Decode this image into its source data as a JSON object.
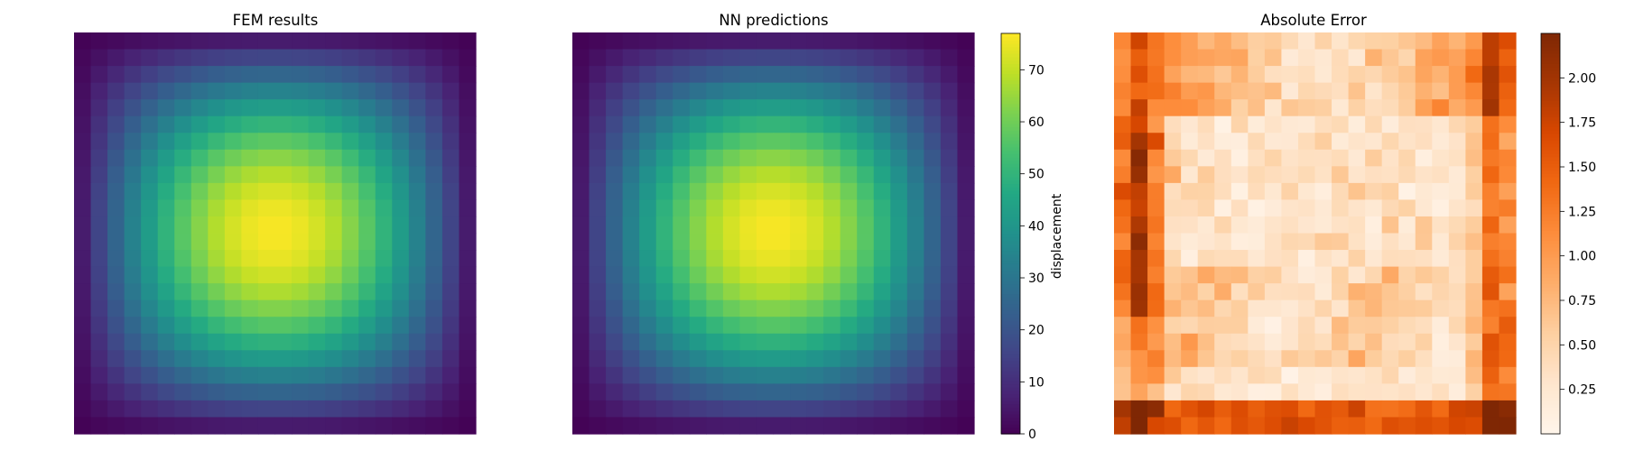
{
  "chart_data": [
    {
      "type": "heatmap",
      "title": "FEM results",
      "grid": [
        24,
        24
      ],
      "colormap": "viridis",
      "value_range": [
        0,
        77
      ],
      "field": "smooth bump peaking near the center, near 0 at the corners",
      "axes": "off"
    },
    {
      "type": "heatmap",
      "title": "NN predictions",
      "grid": [
        24,
        24
      ],
      "colormap": "viridis",
      "value_range": [
        0,
        77
      ],
      "field": "smooth bump peaking near the center, near 0 at the corners",
      "axes": "off",
      "colorbar": {
        "label": "displacement",
        "range": [
          0,
          77
        ],
        "ticks": [
          0,
          10,
          20,
          30,
          40,
          50,
          60,
          70
        ],
        "tick_labels": [
          "0",
          "10",
          "20",
          "30",
          "40",
          "50",
          "60",
          "70"
        ]
      }
    },
    {
      "type": "heatmap",
      "title": "Absolute Error",
      "grid": [
        24,
        24
      ],
      "colormap": "oranges",
      "value_range": [
        0,
        2.25
      ],
      "axes": "off",
      "colorbar": {
        "label": "",
        "range": [
          0,
          2.25
        ],
        "ticks": [
          0.25,
          0.5,
          0.75,
          1.0,
          1.25,
          1.5,
          1.75,
          2.0
        ],
        "tick_labels": [
          "0.25",
          "0.50",
          "0.75",
          "1.00",
          "1.25",
          "1.50",
          "1.75",
          "2.00"
        ]
      }
    }
  ]
}
